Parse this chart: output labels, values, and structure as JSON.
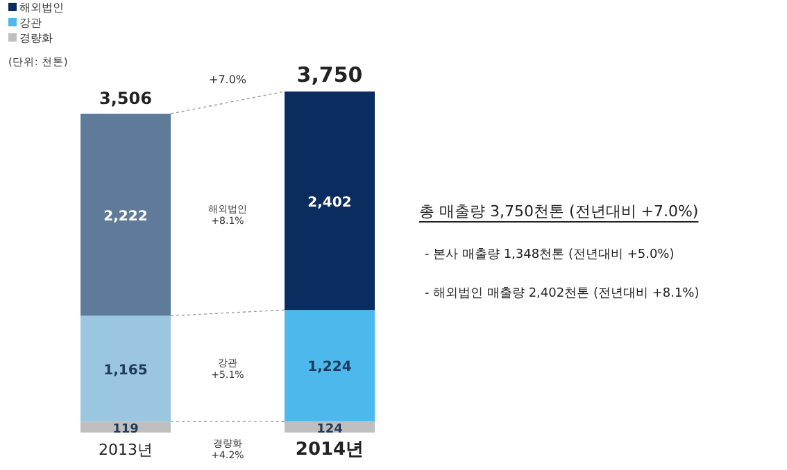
{
  "chart_data": {
    "type": "bar",
    "stacked": true,
    "categories": [
      "2013년",
      "2014년"
    ],
    "series": [
      {
        "name": "경량화",
        "color": "#bfbfbf",
        "colors": [
          "#bfbfbf",
          "#bfbfbf"
        ],
        "values": [
          119,
          124
        ],
        "value_labels": [
          "119",
          "124"
        ]
      },
      {
        "name": "강관",
        "color": "#4db8ec",
        "colors": [
          "#9ac6e0",
          "#4db8ec"
        ],
        "values": [
          1165,
          1224
        ],
        "value_labels": [
          "1,165",
          "1,224"
        ]
      },
      {
        "name": "해외법인",
        "color": "#0b2c5f",
        "colors": [
          "#5f7b99",
          "#0b2c5f"
        ],
        "values": [
          2222,
          2402
        ],
        "value_labels": [
          "2,222",
          "2,402"
        ]
      }
    ],
    "totals": [
      "3,506",
      "3,750"
    ],
    "legend": "top left",
    "annotations": [
      "(단위: 천톤)",
      "+7.0%",
      "해외법인\n+8.1%",
      "강관\n+5.1%",
      "경량화\n+4.2%",
      "총 매출량 3,750천톤 (전년대비 +7.0%)",
      "- 본사 매출량 1,348천톤 (전년대비 +5.0%)",
      "- 해외법인 매출량 2,402천톤 (전년대비 +8.1%)"
    ]
  }
}
